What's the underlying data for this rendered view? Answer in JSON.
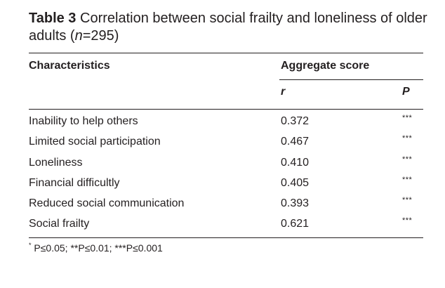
{
  "caption": {
    "label": "Table 3",
    "text_before_n": "Correlation between social frailty and loneliness of older adults (",
    "n_symbol": "n",
    "text_after_n": "=295)"
  },
  "table": {
    "headers": {
      "characteristics": "Characteristics",
      "aggregate_score": "Aggregate score",
      "r": "r",
      "p": "P"
    },
    "rows": [
      {
        "name": "Inability to help others",
        "r": "0.372",
        "p": "***"
      },
      {
        "name": "Limited social participation",
        "r": "0.467",
        "p": "***"
      },
      {
        "name": "Loneliness",
        "r": "0.410",
        "p": "***"
      },
      {
        "name": "Financial difficultly",
        "r": "0.405",
        "p": "***"
      },
      {
        "name": "Reduced social communication",
        "r": "0.393",
        "p": "***"
      },
      {
        "name": "Social frailty",
        "r": "0.621",
        "p": "***"
      }
    ]
  },
  "footnote": {
    "marker": "*",
    "text": "P≤0.05; **P≤0.01; ***P≤0.001"
  }
}
